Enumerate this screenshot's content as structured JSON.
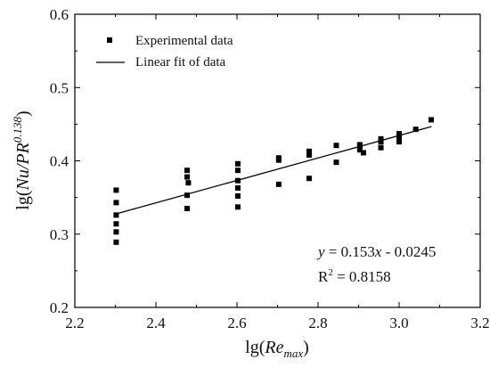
{
  "chart_data": {
    "type": "scatter",
    "xlim": [
      2.2,
      3.2
    ],
    "ylim": [
      0.2,
      0.6
    ],
    "xticks": [
      "2.2",
      "2.4",
      "2.6",
      "2.8",
      "3.0",
      "3.2"
    ],
    "yticks": [
      "0.2",
      "0.3",
      "0.4",
      "0.5",
      "0.6"
    ],
    "xlabel": {
      "prefix": "lg(",
      "main": "Re",
      "sub": "max",
      "suffix": ")"
    },
    "ylabel": {
      "prefix": "lg(",
      "main": "Nu/PR",
      "sup": "0.138",
      "suffix": ")"
    },
    "legend_position": "top-left",
    "series": [
      {
        "name": "Experimental data",
        "marker": "square",
        "color": "#000000",
        "points": [
          [
            2.302,
            0.289
          ],
          [
            2.302,
            0.303
          ],
          [
            2.302,
            0.314
          ],
          [
            2.302,
            0.326
          ],
          [
            2.302,
            0.343
          ],
          [
            2.302,
            0.36
          ],
          [
            2.477,
            0.335
          ],
          [
            2.477,
            0.353
          ],
          [
            2.48,
            0.37
          ],
          [
            2.477,
            0.378
          ],
          [
            2.477,
            0.387
          ],
          [
            2.602,
            0.337
          ],
          [
            2.602,
            0.352
          ],
          [
            2.602,
            0.363
          ],
          [
            2.602,
            0.373
          ],
          [
            2.602,
            0.387
          ],
          [
            2.602,
            0.396
          ],
          [
            2.703,
            0.368
          ],
          [
            2.703,
            0.401
          ],
          [
            2.703,
            0.404
          ],
          [
            2.778,
            0.376
          ],
          [
            2.778,
            0.408
          ],
          [
            2.778,
            0.413
          ],
          [
            2.845,
            0.398
          ],
          [
            2.845,
            0.421
          ],
          [
            2.903,
            0.415
          ],
          [
            2.903,
            0.42
          ],
          [
            2.903,
            0.422
          ],
          [
            2.912,
            0.411
          ],
          [
            2.955,
            0.418
          ],
          [
            2.955,
            0.426
          ],
          [
            2.955,
            0.43
          ],
          [
            3.0,
            0.426
          ],
          [
            3.0,
            0.432
          ],
          [
            3.0,
            0.437
          ],
          [
            3.041,
            0.443
          ],
          [
            3.079,
            0.456
          ]
        ]
      }
    ],
    "fit": {
      "name": "Linear fit of data",
      "color": "#000000",
      "slope": 0.153,
      "intercept": -0.0245,
      "x_range": [
        2.3,
        3.08
      ]
    },
    "annotation": {
      "equation": {
        "y": "y",
        "eq": " = 0.153",
        "x": "x",
        "rest": " - 0.0245"
      },
      "r2": {
        "r": "R",
        "sup": "2",
        "rest": " = 0.8158"
      }
    }
  }
}
